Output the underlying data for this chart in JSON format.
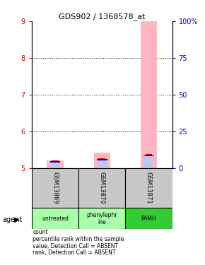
{
  "title": "GDS902 / 1368578_at",
  "samples": [
    "GSM13869",
    "GSM13870",
    "GSM13871"
  ],
  "agents": [
    "untreated",
    "phenylephr\nine",
    "PAMH"
  ],
  "agent_colors": [
    "#aaffaa",
    "#aaffaa",
    "#33cc33"
  ],
  "ylim_left": [
    5,
    9
  ],
  "ylim_right": [
    0,
    100
  ],
  "yticks_left": [
    5,
    6,
    7,
    8,
    9
  ],
  "yticks_right": [
    0,
    25,
    50,
    75,
    100
  ],
  "ytick_labels_right": [
    "0",
    "25",
    "50",
    "75",
    "100%"
  ],
  "bar_values": [
    5.22,
    5.43,
    9.0
  ],
  "bar_colors_absent": "#FFB6C1",
  "rank_values_absent": [
    5.165,
    5.22,
    5.33
  ],
  "rank_colors_absent": "#C0C8E8",
  "count_values": [
    5.175,
    5.235,
    5.345
  ],
  "count_color": "#CC0000",
  "percentile_color": "#0000CC",
  "grid_yticks": [
    6,
    7,
    8
  ],
  "left_tick_color": "#CC0000",
  "right_tick_color": "#0000CC",
  "bar_width": 0.35,
  "rank_bar_width": 0.22,
  "count_bar_height": 0.035,
  "count_bar_width": 0.15,
  "percentile_bar_height": 0.025,
  "legend_items": [
    {
      "color": "#CC0000",
      "label": "count"
    },
    {
      "color": "#0000CC",
      "label": "percentile rank within the sample"
    },
    {
      "color": "#FFB6C1",
      "label": "value, Detection Call = ABSENT"
    },
    {
      "color": "#C0C8E8",
      "label": "rank, Detection Call = ABSENT"
    }
  ]
}
